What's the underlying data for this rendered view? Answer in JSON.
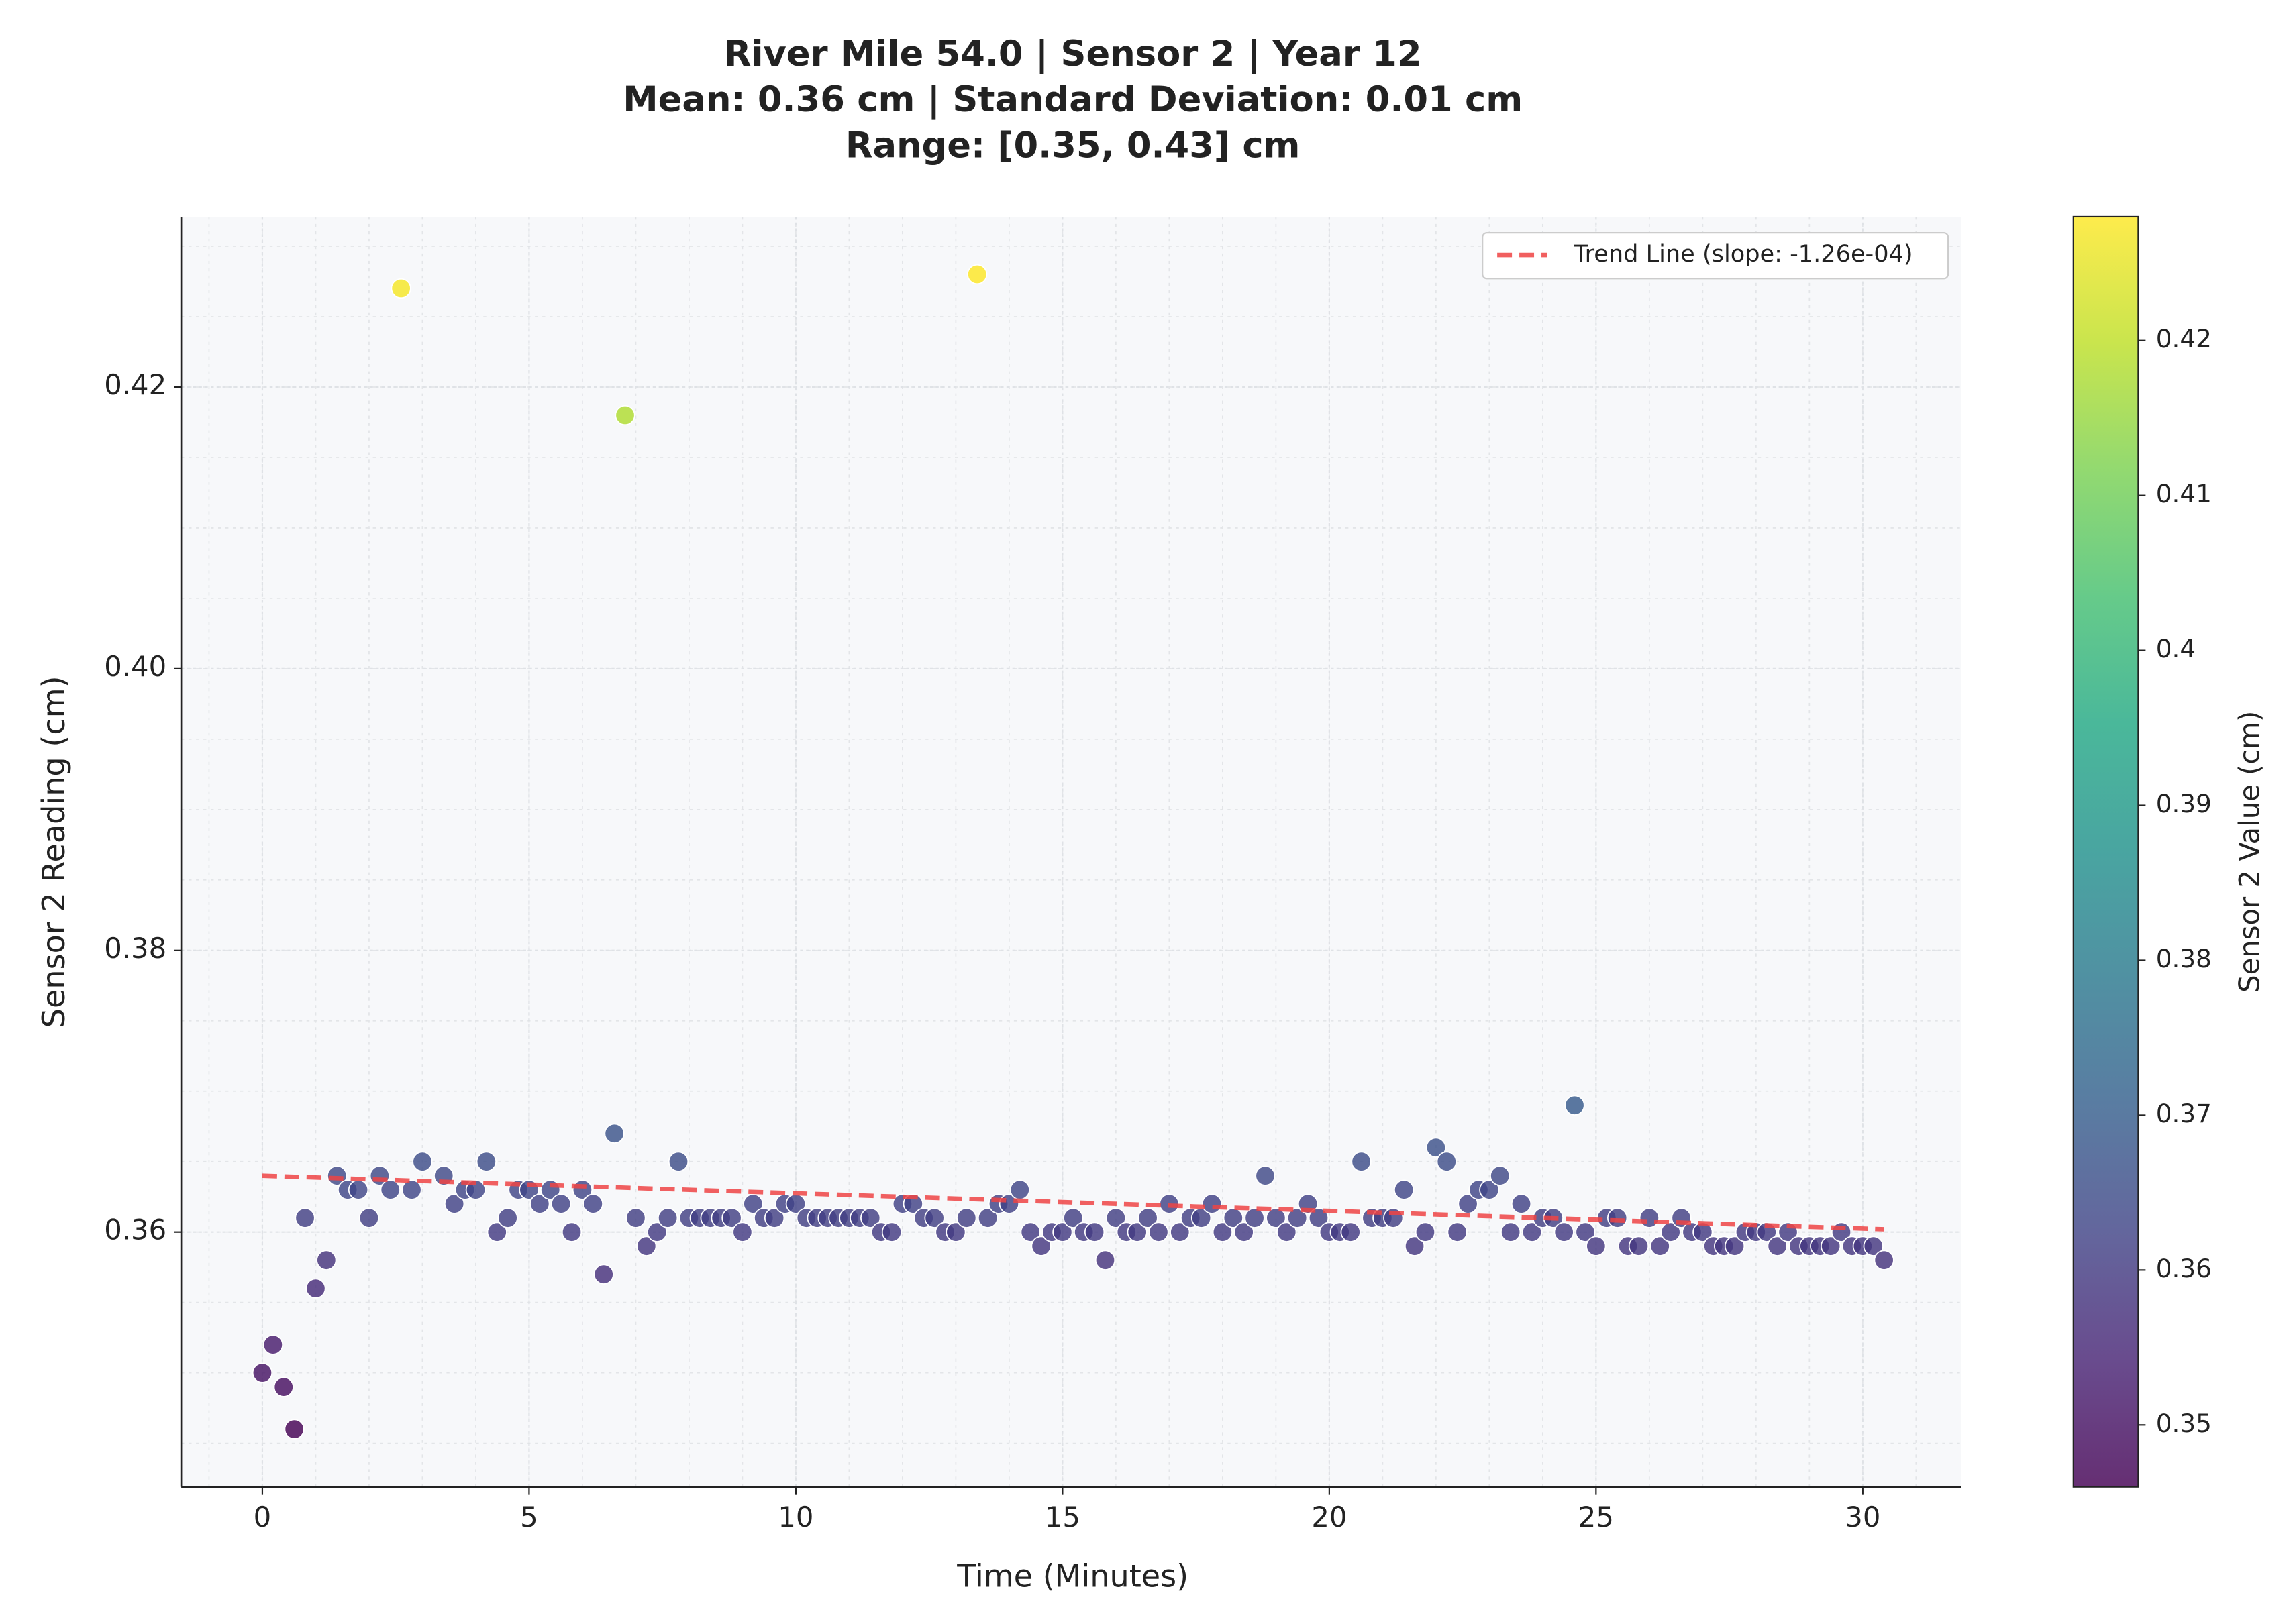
{
  "chart_data": {
    "type": "scatter",
    "title": "River Mile 54.0 | Sensor 2 | Year 12",
    "subtitle": [
      "Mean: 0.36 cm | Standard Deviation: 0.01 cm",
      "Range: [0.35, 0.43] cm"
    ],
    "x_label": "Time (Minutes)",
    "y_label": "Sensor 2 Reading (cm)",
    "x": [
      0,
      0.2,
      0.4,
      0.6,
      0.8,
      1.0,
      1.2,
      1.4,
      1.6,
      1.8,
      2.0,
      2.2,
      2.4,
      2.6,
      2.8,
      3.0,
      3.4,
      3.6,
      3.8,
      4.0,
      4.2,
      4.4,
      4.6,
      4.8,
      5.0,
      5.2,
      5.4,
      5.6,
      5.8,
      6.0,
      6.2,
      6.4,
      6.6,
      6.8,
      7.0,
      7.2,
      7.4,
      7.6,
      7.8,
      8.0,
      8.2,
      8.4,
      8.6,
      8.8,
      9.0,
      9.2,
      9.4,
      9.6,
      9.8,
      10.0,
      10.2,
      10.4,
      10.6,
      10.8,
      11.0,
      11.2,
      11.4,
      11.6,
      11.8,
      12.0,
      12.2,
      12.4,
      12.6,
      12.8,
      13.0,
      13.2,
      13.4,
      13.6,
      13.8,
      14.0,
      14.2,
      14.4,
      14.6,
      14.8,
      15.0,
      15.2,
      15.4,
      15.6,
      15.8,
      16.0,
      16.2,
      16.4,
      16.6,
      16.8,
      17.0,
      17.2,
      17.4,
      17.6,
      17.8,
      18.0,
      18.2,
      18.4,
      18.6,
      18.8,
      19.0,
      19.2,
      19.4,
      19.6,
      19.8,
      20.0,
      20.2,
      20.4,
      20.6,
      20.8,
      21.0,
      21.2,
      21.4,
      21.6,
      21.8,
      22.0,
      22.2,
      22.4,
      22.6,
      22.8,
      23.0,
      23.2,
      23.4,
      23.6,
      23.8,
      24.0,
      24.2,
      24.4,
      24.6,
      24.8,
      25.0,
      25.2,
      25.4,
      25.6,
      25.8,
      26.0,
      26.2,
      26.4,
      26.6,
      26.8,
      27.0,
      27.2,
      27.4,
      27.6,
      27.8,
      28.0,
      28.2,
      28.4,
      28.6,
      28.8,
      29.0,
      29.2,
      29.4,
      29.6,
      29.8,
      30.0,
      30.2,
      30.4
    ],
    "values": [
      0.35,
      0.352,
      0.349,
      0.346,
      0.361,
      0.356,
      0.358,
      0.364,
      0.363,
      0.363,
      0.361,
      0.364,
      0.363,
      0.427,
      0.363,
      0.365,
      0.364,
      0.362,
      0.363,
      0.363,
      0.365,
      0.36,
      0.361,
      0.363,
      0.363,
      0.362,
      0.363,
      0.362,
      0.36,
      0.363,
      0.362,
      0.357,
      0.367,
      0.418,
      0.361,
      0.359,
      0.36,
      0.361,
      0.365,
      0.361,
      0.361,
      0.361,
      0.361,
      0.361,
      0.36,
      0.362,
      0.361,
      0.361,
      0.362,
      0.362,
      0.361,
      0.361,
      0.361,
      0.361,
      0.361,
      0.361,
      0.361,
      0.36,
      0.36,
      0.362,
      0.362,
      0.361,
      0.361,
      0.36,
      0.36,
      0.361,
      0.428,
      0.361,
      0.362,
      0.362,
      0.363,
      0.36,
      0.359,
      0.36,
      0.36,
      0.361,
      0.36,
      0.36,
      0.358,
      0.361,
      0.36,
      0.36,
      0.361,
      0.36,
      0.362,
      0.36,
      0.361,
      0.361,
      0.362,
      0.36,
      0.361,
      0.36,
      0.361,
      0.364,
      0.361,
      0.36,
      0.361,
      0.362,
      0.361,
      0.36,
      0.36,
      0.36,
      0.365,
      0.361,
      0.361,
      0.361,
      0.363,
      0.359,
      0.36,
      0.366,
      0.365,
      0.36,
      0.362,
      0.363,
      0.363,
      0.364,
      0.36,
      0.362,
      0.36,
      0.361,
      0.361,
      0.36,
      0.369,
      0.36,
      0.359,
      0.361,
      0.361,
      0.359,
      0.359,
      0.361,
      0.359,
      0.36,
      0.361,
      0.36,
      0.36,
      0.359,
      0.359,
      0.359,
      0.36,
      0.36,
      0.36,
      0.359,
      0.36,
      0.359,
      0.359,
      0.359,
      0.359,
      0.36,
      0.359,
      0.359,
      0.359,
      0.358
    ],
    "colormap": "viridis",
    "clim": [
      0.346,
      0.428
    ],
    "colorbar_label": "Sensor 2 Value (cm)",
    "colorbar_ticks": [
      0.35,
      0.36,
      0.37,
      0.38,
      0.39,
      0.4,
      0.41,
      0.42
    ],
    "trend": {
      "name": "Trend Line (slope: -1.26e-04)",
      "color": "#ef4444",
      "x": [
        0,
        30.4
      ],
      "values": [
        0.364,
        0.3602
      ]
    },
    "xlim": [
      -1.52,
      31.85
    ],
    "xticks": [
      0,
      5,
      10,
      15,
      20,
      25,
      30
    ],
    "ylim": [
      0.3419,
      0.4321
    ],
    "yticks": [
      0.36,
      0.38,
      {
        "value": 0.4,
        "label": "0.40"
      },
      0.42
    ],
    "grid": true,
    "minor_grid": true,
    "legend": "upper right"
  }
}
